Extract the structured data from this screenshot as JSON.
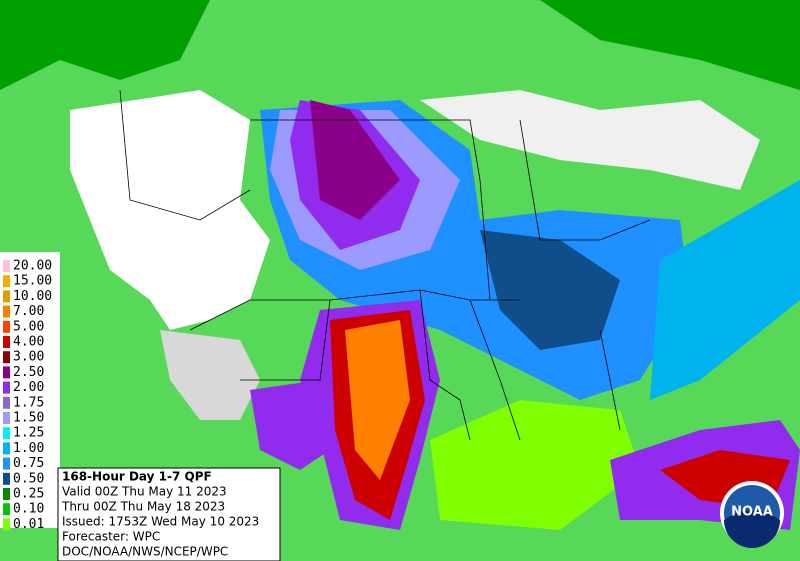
{
  "legend": {
    "items": [
      {
        "label": "20.00",
        "color": "#ffc0e0"
      },
      {
        "label": "15.00",
        "color": "#f0b000"
      },
      {
        "label": "10.00",
        "color": "#d8a000"
      },
      {
        "label": "7.00",
        "color": "#ff7f00"
      },
      {
        "label": "5.00",
        "color": "#ff4000"
      },
      {
        "label": "4.00",
        "color": "#cd0000"
      },
      {
        "label": "3.00",
        "color": "#8b0000"
      },
      {
        "label": "2.50",
        "color": "#8b008b"
      },
      {
        "label": "2.00",
        "color": "#912cee"
      },
      {
        "label": "1.75",
        "color": "#8968cd"
      },
      {
        "label": "1.50",
        "color": "#9a9aff"
      },
      {
        "label": "1.25",
        "color": "#00eeee"
      },
      {
        "label": "1.00",
        "color": "#00b2ee"
      },
      {
        "label": "0.75",
        "color": "#1e90ff"
      },
      {
        "label": "0.50",
        "color": "#104e8b"
      },
      {
        "label": "0.25",
        "color": "#008b00"
      },
      {
        "label": "0.10",
        "color": "#00c800"
      },
      {
        "label": "0.01",
        "color": "#7fff00"
      }
    ]
  },
  "info": {
    "lines": [
      "168-Hour Day 1-7 QPF",
      "Valid 00Z Thu May 11 2023",
      "Thru 00Z Thu May 18 2023",
      "Issued: 1753Z Wed May 10 2023",
      "Forecaster: WPC",
      "DOC/NOAA/NWS/NCEP/WPC"
    ]
  },
  "logo": {
    "text": "NOAA"
  }
}
